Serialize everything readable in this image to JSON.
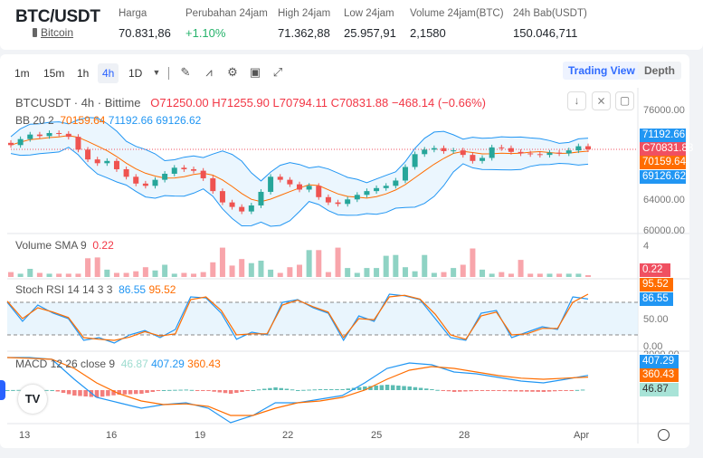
{
  "header": {
    "pair": "BTC/USDT",
    "coin": "Bitcoin",
    "stats": [
      {
        "label": "Harga",
        "value": "70.831,86"
      },
      {
        "label": "Perubahan 24jam",
        "value": "+1.10%"
      },
      {
        "label": "High 24jam",
        "value": "71.362,88"
      },
      {
        "label": "Low 24jam",
        "value": "25.957,91"
      },
      {
        "label": "Volume 24jam(BTC)",
        "value": "2,1580"
      },
      {
        "label": "24h Bab(USDT)",
        "value": "150.046,711"
      }
    ]
  },
  "toolbar": {
    "intervals": [
      "1m",
      "15m",
      "1h",
      "4h",
      "1D"
    ],
    "active": "4h",
    "trading_view": "Trading View",
    "depth": "Depth"
  },
  "legend": {
    "symbol": "BTCUSDT · 4h · Bittime",
    "o": "O71250.00",
    "h": "H71255.90",
    "l": "L70794.11",
    "c": "C70831.88",
    "chg": "−468.14 (−0.66%)",
    "bb": "BB 20 2",
    "bb_mid": "70159.64",
    "bb_up": "71192.66",
    "bb_lo": "69126.62",
    "vol": "Volume SMA 9",
    "vol_v": "0.22",
    "stoch": "Stoch RSI 14 14 3 3",
    "stoch_k": "86.55",
    "stoch_d": "95.52",
    "macd": "MACD 12 26 close 9",
    "macd_h": "46.87",
    "macd_m": "407.29",
    "macd_s": "360.43"
  },
  "axis": {
    "price": [
      "76000.00",
      "64000.00",
      "60000.00"
    ],
    "vol": [
      "4"
    ],
    "stoch": [
      "50.00",
      "0.00"
    ],
    "macd": [
      "2000.00"
    ],
    "time": [
      "13",
      "16",
      "19",
      "22",
      "25",
      "28",
      "Apr"
    ]
  },
  "colors": {
    "up": "#26a69a",
    "down": "#ef5350",
    "bb": "#2196f3",
    "mid": "#ff6d00"
  },
  "chart": {
    "closes": [
      71400,
      72200,
      72800,
      72600,
      73000,
      72900,
      72500,
      70800,
      69500,
      69000,
      69300,
      68200,
      67200,
      66300,
      66000,
      66800,
      67600,
      68400,
      68200,
      68000,
      67000,
      65300,
      63800,
      63200,
      62600,
      63400,
      65200,
      67200,
      66800,
      66200,
      65500,
      66000,
      64500,
      63800,
      63600,
      64200,
      64800,
      65300,
      65700,
      66000,
      66700,
      68500,
      70200,
      70800,
      71000,
      70600,
      70700,
      70100,
      69300,
      69700,
      71100,
      71000,
      70500,
      70300,
      70200,
      70100,
      70400,
      70300,
      70700,
      71250,
      70832
    ],
    "volume": [
      0.6,
      0.4,
      1,
      0.5,
      0.4,
      0.4,
      0.4,
      0.4,
      2.3,
      2.4,
      0.9,
      0.5,
      0.5,
      0.7,
      1.2,
      0.8,
      1.5,
      0.4,
      0.5,
      0.4,
      0.6,
      1.8,
      3.6,
      1.4,
      2.2,
      1.7,
      2,
      0.9,
      0.5,
      1.2,
      1.5,
      3.3,
      3.3,
      0.6,
      3.6,
      1.1,
      0.5,
      1.1,
      1.1,
      2.6,
      2.7,
      1.2,
      0.7,
      2.7,
      0.5,
      0.6,
      1.1,
      1.5,
      3.5,
      0.9,
      0.4,
      0.6,
      0.4,
      2.1,
      0.4,
      0.4,
      0.4,
      0.4,
      0.4,
      0.4,
      0.22
    ],
    "stoch_k": [
      80,
      45,
      75,
      60,
      50,
      10,
      15,
      5,
      20,
      28,
      15,
      30,
      90,
      88,
      60,
      12,
      25,
      20,
      80,
      85,
      70,
      60,
      10,
      55,
      45,
      95,
      92,
      85,
      50,
      15,
      10,
      60,
      65,
      15,
      25,
      35,
      30,
      90,
      86
    ],
    "stoch_d": [
      82,
      50,
      70,
      62,
      52,
      15,
      12,
      10,
      16,
      26,
      18,
      22,
      85,
      90,
      65,
      20,
      22,
      22,
      75,
      84,
      72,
      62,
      15,
      50,
      48,
      90,
      93,
      86,
      58,
      20,
      12,
      55,
      62,
      20,
      22,
      32,
      32,
      80,
      95
    ],
    "macd": [
      900,
      900,
      850,
      300,
      -200,
      -350,
      -500,
      -400,
      -350,
      -500,
      -900,
      -700,
      -350,
      -350,
      -250,
      -150,
      200,
      600,
      750,
      700,
      500,
      450,
      350,
      250,
      200,
      300,
      407
    ],
    "signal": [
      900,
      880,
      850,
      600,
      200,
      -100,
      -300,
      -400,
      -380,
      -450,
      -700,
      -700,
      -500,
      -350,
      -300,
      -200,
      0,
      300,
      550,
      650,
      600,
      500,
      400,
      330,
      300,
      330,
      360
    ]
  }
}
